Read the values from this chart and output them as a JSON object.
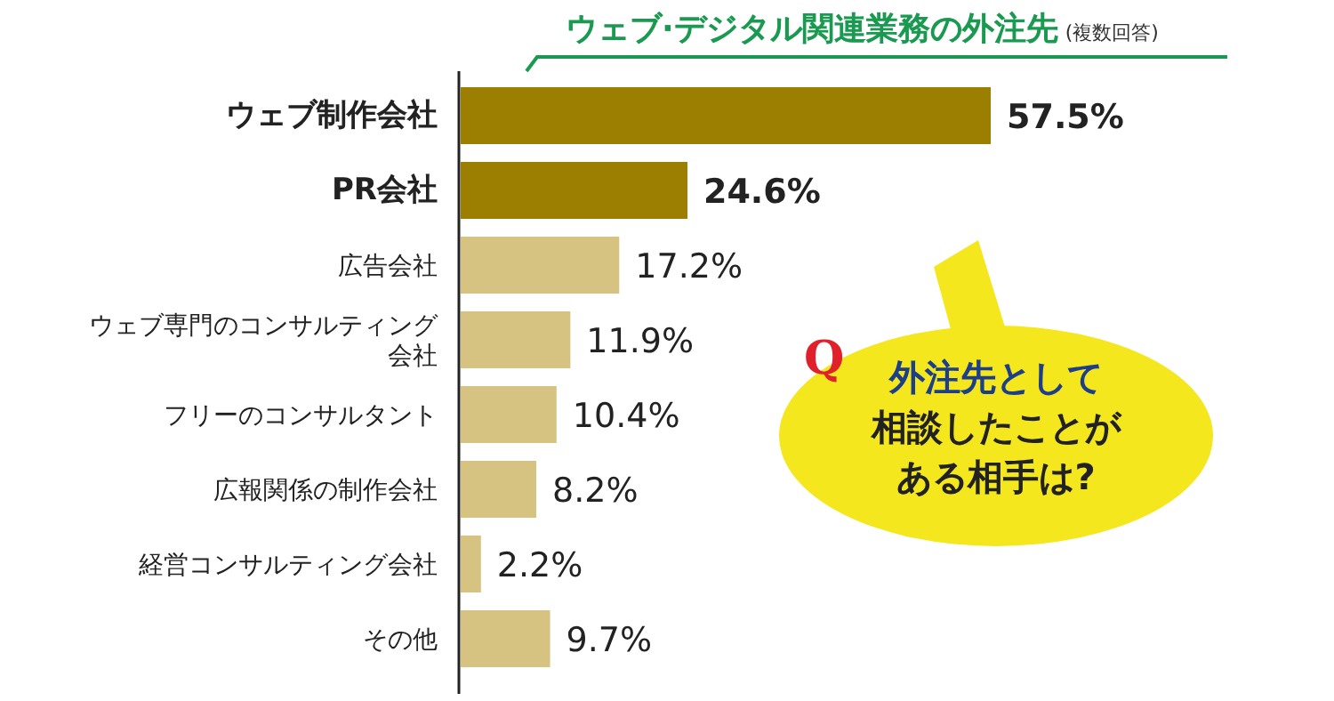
{
  "chart_data": {
    "type": "bar",
    "orientation": "horizontal",
    "title": "ウェブ·デジタル関連業務の外注先",
    "subtitle": "(複数回答)",
    "categories": [
      "ウェブ制作会社",
      "PR会社",
      "広告会社",
      "ウェブ専門のコンサルティング会社",
      "フリーのコンサルタント",
      "広報関係の制作会社",
      "経営コンサルティング会社",
      "その他"
    ],
    "values": [
      57.5,
      24.6,
      17.2,
      11.9,
      10.4,
      8.2,
      2.2,
      9.7
    ],
    "value_labels": [
      "57.5%",
      "24.6%",
      "17.2%",
      "11.9%",
      "10.4%",
      "8.2%",
      "2.2%",
      "9.7%"
    ],
    "colors": [
      "#9c7f00",
      "#9c7f00",
      "#d6c382",
      "#d6c382",
      "#d6c382",
      "#d6c382",
      "#d6c382",
      "#d6c382"
    ],
    "annotations": [
      "Q",
      "外注先として",
      "相談したことが",
      "ある相手は?"
    ]
  }
}
